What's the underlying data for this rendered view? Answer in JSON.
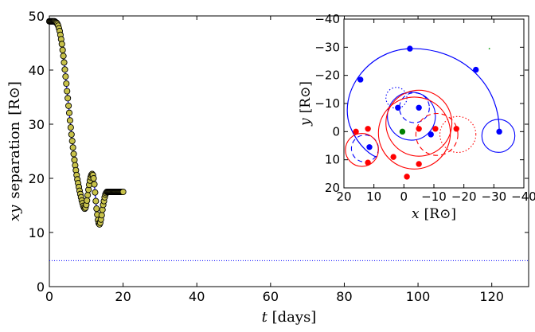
{
  "chart_data": [
    {
      "id": "main",
      "type": "scatter",
      "xlabel": {
        "var": "t",
        "unit": "[days]"
      },
      "ylabel": {
        "var": "xy",
        "text": "separation",
        "unit": "[R⊙]"
      },
      "xlim": [
        0,
        130
      ],
      "ylim": [
        0,
        50
      ],
      "xticks": [
        0,
        20,
        40,
        60,
        80,
        100,
        120
      ],
      "yticks": [
        0,
        10,
        20,
        30,
        40,
        50
      ],
      "xtick_labels": [
        "0",
        "20",
        "40",
        "60",
        "80",
        "100",
        "120"
      ],
      "ytick_labels": [
        "0",
        "10",
        "20",
        "30",
        "40",
        "50"
      ],
      "grid": false,
      "marker_fill": "#c8c24a",
      "line_color": "#0000ff",
      "hline": {
        "y": 4.8,
        "color": "#0000ff",
        "style": "dotted"
      },
      "series": [
        {
          "x": [
            0,
            0.2,
            0.4,
            0.6,
            0.8,
            1,
            1.2,
            1.4,
            1.6,
            1.8,
            2,
            2.2,
            2.4,
            2.6,
            2.8,
            3,
            3.2,
            3.4,
            3.6,
            3.8,
            4,
            4.2,
            4.4,
            4.6,
            4.8,
            5,
            5.2,
            5.4,
            5.6,
            5.8,
            6,
            6.2,
            6.4,
            6.6,
            6.8,
            7,
            7.2,
            7.4,
            7.6,
            7.8,
            8,
            8.2,
            8.4,
            8.6,
            8.8,
            9,
            9.2,
            9.4,
            9.6,
            9.8,
            10,
            10.2,
            10.4,
            10.6,
            10.8,
            11,
            11.2,
            11.4,
            11.6,
            11.8,
            12,
            12.2,
            12.4,
            12.6,
            12.8,
            13,
            13.2,
            13.4,
            13.6,
            13.8,
            14,
            14.2,
            14.4,
            14.6,
            14.8,
            15,
            15.2,
            15.4,
            15.6,
            15.8,
            16,
            16.2,
            16.4,
            16.6,
            16.8,
            17,
            17.2,
            17.4,
            17.6,
            17.8,
            18,
            18.2,
            18.4,
            18.6,
            18.8,
            19,
            19.2,
            19.4,
            19.6,
            19.8,
            20
          ],
          "y": [
            49,
            49,
            49,
            49,
            49,
            49,
            49,
            49,
            48.9,
            48.8,
            48.7,
            48.5,
            48.2,
            47.7,
            47.2,
            46.5,
            45.7,
            44.8,
            43.7,
            42.6,
            41.4,
            40.1,
            38.8,
            37.5,
            36.1,
            34.8,
            33.4,
            32.1,
            30.7,
            29.4,
            28.1,
            26.9,
            25.7,
            24.5,
            23.4,
            22.4,
            21.5,
            20.6,
            19.8,
            19.1,
            18.4,
            17.7,
            17.1,
            16.5,
            15.9,
            15.4,
            14.9,
            14.6,
            14.4,
            14.6,
            15.1,
            15.9,
            16.9,
            17.9,
            18.8,
            19.6,
            20.2,
            20.6,
            20.8,
            20.6,
            20,
            18.9,
            17.4,
            15.8,
            14.4,
            13.3,
            12.3,
            11.7,
            11.5,
            11.8,
            12.4,
            13.2,
            14.2,
            15.1,
            15.8,
            16.5,
            17,
            17.3,
            17.5,
            17.5,
            17.5,
            17.5,
            17.5,
            17.5,
            17.5,
            17.5,
            17.5,
            17.5,
            17.5,
            17.5,
            17.5,
            17.5,
            17.5,
            17.5,
            17.5,
            17.5,
            17.5,
            17.5,
            17.5,
            17.5,
            17.5
          ]
        }
      ]
    },
    {
      "id": "inset",
      "type": "line",
      "xlabel": {
        "var": "x",
        "unit": "[R⊙]"
      },
      "ylabel": {
        "var": "y",
        "unit": "[R⊙]"
      },
      "xlim": [
        20,
        -40
      ],
      "ylim": [
        20,
        -40
      ],
      "xticks": [
        20,
        10,
        0,
        -10,
        -20,
        -30,
        -40
      ],
      "yticks": [
        -40,
        -30,
        -20,
        -10,
        0,
        10,
        20
      ],
      "xtick_labels": [
        "20",
        "10",
        "0",
        "−10",
        "−20",
        "−30",
        "−40"
      ],
      "ytick_labels": [
        "−40",
        "−30",
        "−20",
        "−10",
        "0",
        "10",
        "20"
      ],
      "grid": false,
      "series": [
        {
          "name": "",
          "color": "#0000ff",
          "points": [
            [
              -31.8,
              0
            ],
            [
              -24,
              -22
            ],
            [
              -2,
              -29.5
            ],
            [
              14.5,
              -18.5
            ],
            [
              2,
              -8.5
            ],
            [
              -5,
              -8.5
            ],
            [
              -9,
              1
            ],
            [
              11.5,
              5.5
            ]
          ],
          "circles": [
            {
              "cx": -31.5,
              "cy": 1.5,
              "r": 5.5,
              "style": "solid"
            },
            {
              "cx": -2.5,
              "cy": -5.5,
              "r": 8,
              "style": "solid"
            },
            {
              "cx": -3.5,
              "cy": -8.5,
              "r": 5,
              "style": "dashed"
            },
            {
              "cx": 2.5,
              "cy": -12,
              "r": 3.5,
              "style": "dotted"
            },
            {
              "cx": 13,
              "cy": 6,
              "r": 4.5,
              "style": "dashed"
            }
          ]
        },
        {
          "name": "",
          "color": "#ff0000",
          "points": [
            [
              16,
              0
            ],
            [
              12,
              11
            ],
            [
              3.5,
              9
            ],
            [
              -5,
              -1
            ],
            [
              -5,
              11.5
            ],
            [
              -10.5,
              -1
            ],
            [
              -17.5,
              -1
            ],
            [
              -1,
              16
            ],
            [
              12,
              -1
            ]
          ],
          "circles": [
            {
              "cx": -3.5,
              "cy": 0.5,
              "r": 12,
              "style": "solid"
            },
            {
              "cx": -5,
              "cy": -3,
              "r": 11,
              "style": "solid"
            },
            {
              "cx": 14,
              "cy": 6.5,
              "r": 5.5,
              "style": "solid"
            },
            {
              "cx": -11,
              "cy": 1,
              "r": 7,
              "style": "dashed"
            },
            {
              "cx": -18,
              "cy": 1,
              "r": 6,
              "style": "dotted"
            }
          ]
        },
        {
          "name": "",
          "color": "#008000",
          "points": [
            [
              0.5,
              0
            ]
          ]
        },
        {
          "name": "",
          "color": "#00a000",
          "points": [
            [
              -28.5,
              -29.5
            ]
          ],
          "tiny": true
        }
      ]
    }
  ]
}
